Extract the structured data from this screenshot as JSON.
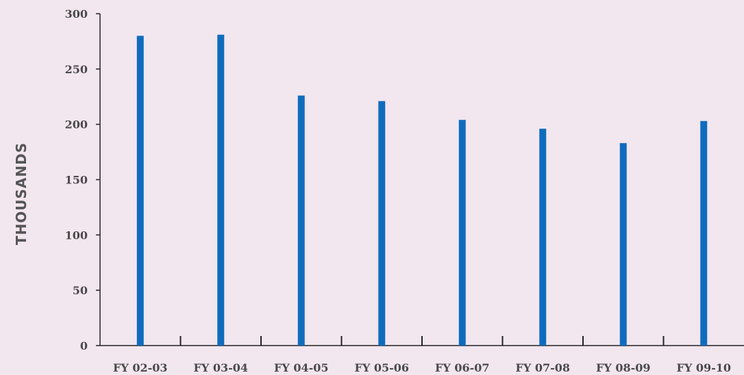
{
  "chart_data": {
    "type": "bar",
    "title": "",
    "xlabel": "",
    "ylabel": "THOUSANDS",
    "categories": [
      "FY 02-03",
      "FY 03-04",
      "FY 04-05",
      "FY 05-06",
      "FY 06-07",
      "FY 07-08",
      "FY 08-09",
      "FY 09-10"
    ],
    "values": [
      280,
      281,
      226,
      221,
      204,
      196,
      183,
      203
    ],
    "ylim": [
      0,
      300
    ],
    "yticks": [
      0,
      50,
      100,
      150,
      200,
      250,
      300
    ],
    "grid": false,
    "legend": "none",
    "colors": {
      "bar": "#0f6cbd",
      "axis": "#222222",
      "background": "#f2e6ef"
    }
  }
}
